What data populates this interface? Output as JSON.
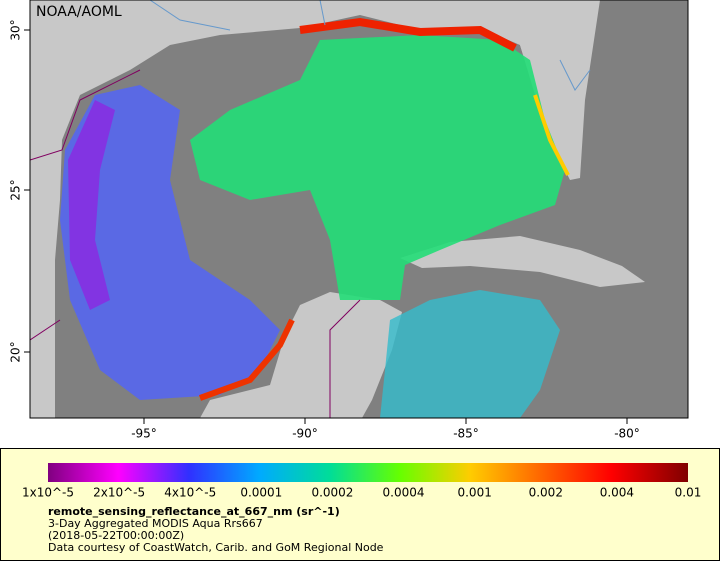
{
  "map": {
    "attribution": "NOAA/AOML",
    "lat_ticks": [
      "20°",
      "25°",
      "30°"
    ],
    "lon_ticks": [
      "-95°",
      "-90°",
      "-85°",
      "-80°"
    ]
  },
  "legend": {
    "scale_labels": [
      "1x10^-5",
      "2x10^-5",
      "4x10^-5",
      "0.0001",
      "0.0002",
      "0.0004",
      "0.001",
      "0.002",
      "0.004",
      "0.01"
    ],
    "variable": "remote_sensing_reflectance_at_667_nm (sr^-1)",
    "lines": [
      "3-Day Aggregated MODIS Aqua Rrs667",
      "(2018-05-22T00:00:00Z)",
      "Data courtesy of CoastWatch, Carib. and GoM Regional Node"
    ]
  }
}
